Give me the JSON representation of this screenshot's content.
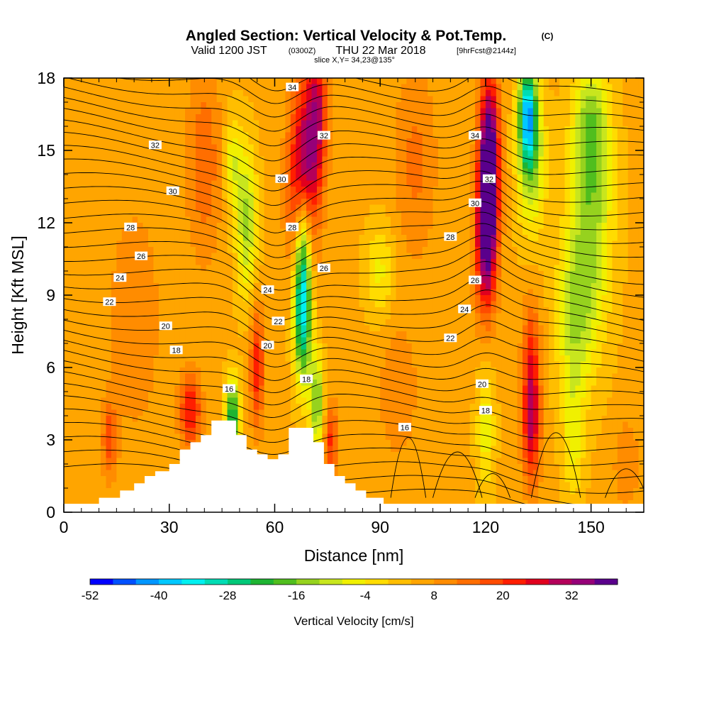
{
  "header": {
    "title": "Angled Section: Vertical Velocity & Pot.Temp.",
    "title_unit": "(C)",
    "valid_prefix": "Valid 1200 JST",
    "valid_z": "(0300Z)",
    "valid_date": "THU 22 Mar 2018",
    "valid_fcst": "[9hrFcst@2144z]",
    "slice": "slice X,Y= 34,23@135°"
  },
  "chart_data": {
    "type": "heatmap",
    "description_series": "Vertical velocity (filled) with potential temperature contours",
    "xlabel": "Distance [nm]",
    "ylabel": "Height [Kft MSL]",
    "xlim": [
      0,
      165
    ],
    "ylim": [
      0,
      18
    ],
    "xticks": [
      0,
      30,
      60,
      90,
      120,
      150
    ],
    "yticks": [
      0,
      3,
      6,
      9,
      12,
      15,
      18
    ],
    "colorbar": {
      "label": "Vertical Velocity [cm/s]",
      "tick_labels": [
        -52,
        -40,
        -28,
        -16,
        -4,
        8,
        20,
        32
      ],
      "min": -52,
      "max": 40,
      "colors": [
        "#0000ff",
        "#0050ff",
        "#0096ff",
        "#00c8ff",
        "#00f0f0",
        "#00dcb4",
        "#00c878",
        "#1eb432",
        "#50be1e",
        "#96d21e",
        "#c8e61e",
        "#f0f000",
        "#ffdc00",
        "#ffbe00",
        "#ffa500",
        "#ff8c00",
        "#ff6e00",
        "#ff4b00",
        "#ff1e00",
        "#e1001e",
        "#b4005a",
        "#960078",
        "#5a008c"
      ]
    },
    "terrain": [
      [
        0,
        0.35
      ],
      [
        10,
        0.35
      ],
      [
        10,
        0.6
      ],
      [
        16,
        0.6
      ],
      [
        16,
        0.9
      ],
      [
        20,
        0.9
      ],
      [
        20,
        1.2
      ],
      [
        23,
        1.2
      ],
      [
        23,
        1.5
      ],
      [
        26,
        1.5
      ],
      [
        26,
        1.7
      ],
      [
        30,
        1.7
      ],
      [
        30,
        2.0
      ],
      [
        33,
        2.0
      ],
      [
        33,
        2.6
      ],
      [
        36,
        2.6
      ],
      [
        36,
        2.9
      ],
      [
        39,
        2.9
      ],
      [
        39,
        3.2
      ],
      [
        42,
        3.2
      ],
      [
        42,
        3.8
      ],
      [
        49,
        3.8
      ],
      [
        49,
        3.2
      ],
      [
        52,
        3.2
      ],
      [
        52,
        2.6
      ],
      [
        55,
        2.6
      ],
      [
        55,
        2.4
      ],
      [
        58,
        2.4
      ],
      [
        58,
        2.2
      ],
      [
        61,
        2.2
      ],
      [
        61,
        2.4
      ],
      [
        64,
        2.4
      ],
      [
        64,
        3.5
      ],
      [
        71,
        3.5
      ],
      [
        71,
        2.9
      ],
      [
        74,
        2.9
      ],
      [
        74,
        2.0
      ],
      [
        77,
        2.0
      ],
      [
        77,
        1.5
      ],
      [
        80,
        1.5
      ],
      [
        80,
        1.2
      ],
      [
        83,
        1.2
      ],
      [
        83,
        0.9
      ],
      [
        86,
        0.9
      ],
      [
        86,
        0.6
      ],
      [
        91,
        0.6
      ],
      [
        91,
        0.35
      ],
      [
        165,
        0.35
      ]
    ],
    "contour_labels": [
      {
        "value": "34",
        "x": 65,
        "y": 17.6
      },
      {
        "value": "32",
        "x": 26,
        "y": 15.2
      },
      {
        "value": "32",
        "x": 74,
        "y": 15.6
      },
      {
        "value": "34",
        "x": 117,
        "y": 15.6
      },
      {
        "value": "32",
        "x": 121,
        "y": 13.8
      },
      {
        "value": "30",
        "x": 31,
        "y": 13.3
      },
      {
        "value": "30",
        "x": 62,
        "y": 13.8
      },
      {
        "value": "30",
        "x": 117,
        "y": 12.8
      },
      {
        "value": "28",
        "x": 19,
        "y": 11.8
      },
      {
        "value": "28",
        "x": 65,
        "y": 11.8
      },
      {
        "value": "28",
        "x": 110,
        "y": 11.4
      },
      {
        "value": "26",
        "x": 22,
        "y": 10.6
      },
      {
        "value": "26",
        "x": 74,
        "y": 10.1
      },
      {
        "value": "26",
        "x": 117,
        "y": 9.6
      },
      {
        "value": "24",
        "x": 16,
        "y": 9.7
      },
      {
        "value": "24",
        "x": 58,
        "y": 9.2
      },
      {
        "value": "24",
        "x": 114,
        "y": 8.4
      },
      {
        "value": "22",
        "x": 13,
        "y": 8.7
      },
      {
        "value": "22",
        "x": 61,
        "y": 7.9
      },
      {
        "value": "22",
        "x": 110,
        "y": 7.2
      },
      {
        "value": "20",
        "x": 29,
        "y": 7.7
      },
      {
        "value": "20",
        "x": 58,
        "y": 6.9
      },
      {
        "value": "20",
        "x": 119,
        "y": 5.3
      },
      {
        "value": "18",
        "x": 32,
        "y": 6.7
      },
      {
        "value": "18",
        "x": 69,
        "y": 5.5
      },
      {
        "value": "18",
        "x": 120,
        "y": 4.2
      },
      {
        "value": "16",
        "x": 47,
        "y": 5.1
      },
      {
        "value": "16",
        "x": 97,
        "y": 3.5
      }
    ]
  },
  "colors": {
    "axis": "#000000",
    "contour": "#000000",
    "terrain": "#ffffff"
  }
}
